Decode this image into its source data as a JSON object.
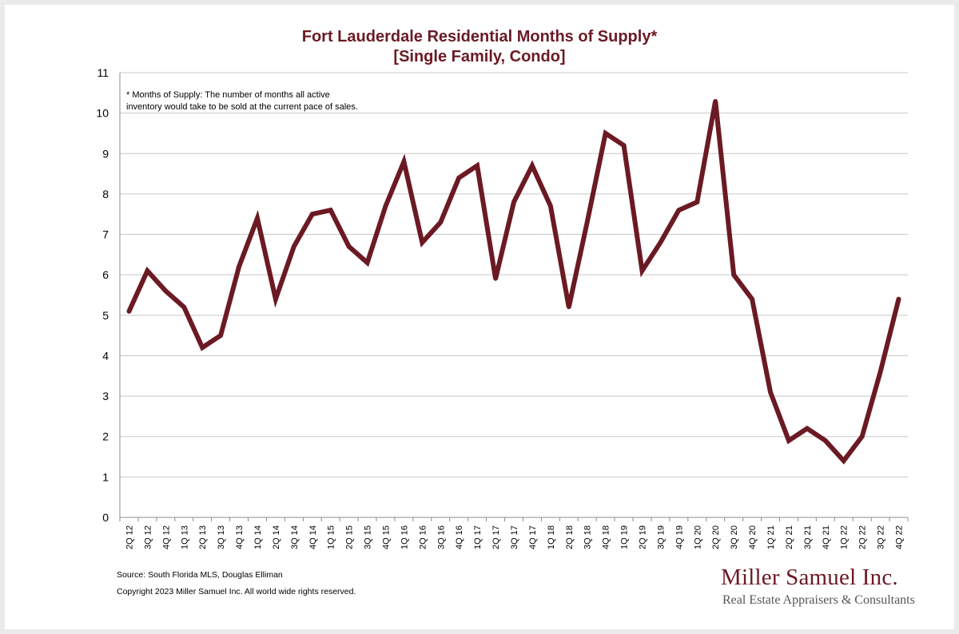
{
  "title_line1": "Fort Lauderdale Residential Months of Supply*",
  "title_line2": "[Single Family, Condo]",
  "footnote_line1": "* Months of Supply: The number of months all active",
  "footnote_line2": "inventory would take to be sold at the current pace of sales.",
  "source": "Source: South Florida MLS, Douglas Elliman",
  "copyright": "Copyright 2023 Miller Samuel Inc.  All world wide rights reserved.",
  "brand_name": "Miller Samuel Inc.",
  "brand_tagline": "Real Estate Appraisers & Consultants",
  "colors": {
    "line": "#6b1a24",
    "grid": "#c8c8c8",
    "title": "#6b1a24"
  },
  "chart_data": {
    "type": "line",
    "title": "Fort Lauderdale Residential Months of Supply* [Single Family, Condo]",
    "xlabel": "",
    "ylabel": "",
    "ylim": [
      0,
      11
    ],
    "yticks": [
      0,
      1,
      2,
      3,
      4,
      5,
      6,
      7,
      8,
      9,
      10,
      11
    ],
    "grid": true,
    "categories": [
      "2Q 12",
      "3Q 12",
      "4Q 12",
      "1Q 13",
      "2Q 13",
      "3Q 13",
      "4Q 13",
      "1Q 14",
      "2Q 14",
      "3Q 14",
      "4Q 14",
      "1Q 15",
      "2Q 15",
      "3Q 15",
      "4Q 15",
      "1Q 16",
      "2Q 16",
      "3Q 16",
      "4Q 16",
      "1Q 17",
      "2Q 17",
      "3Q 17",
      "4Q 17",
      "1Q 18",
      "2Q 18",
      "3Q 18",
      "4Q 18",
      "1Q 19",
      "2Q 19",
      "3Q 19",
      "4Q 19",
      "1Q 20",
      "2Q 20",
      "3Q 20",
      "4Q 20",
      "1Q 21",
      "2Q 21",
      "3Q 21",
      "4Q 21",
      "1Q 22",
      "2Q 22",
      "3Q 22",
      "4Q 22"
    ],
    "series": [
      {
        "values": [
          5.1,
          6.1,
          5.6,
          5.2,
          4.2,
          4.5,
          6.2,
          7.4,
          5.4,
          6.7,
          7.5,
          7.6,
          6.7,
          6.3,
          7.7,
          8.8,
          6.8,
          7.3,
          8.4,
          8.7,
          5.9,
          7.8,
          8.7,
          7.7,
          5.2,
          7.3,
          9.5,
          9.2,
          6.1,
          6.8,
          7.6,
          7.8,
          10.3,
          6.0,
          5.4,
          3.1,
          1.9,
          2.2,
          1.9,
          1.4,
          2.0,
          3.6,
          5.4
        ]
      }
    ]
  }
}
